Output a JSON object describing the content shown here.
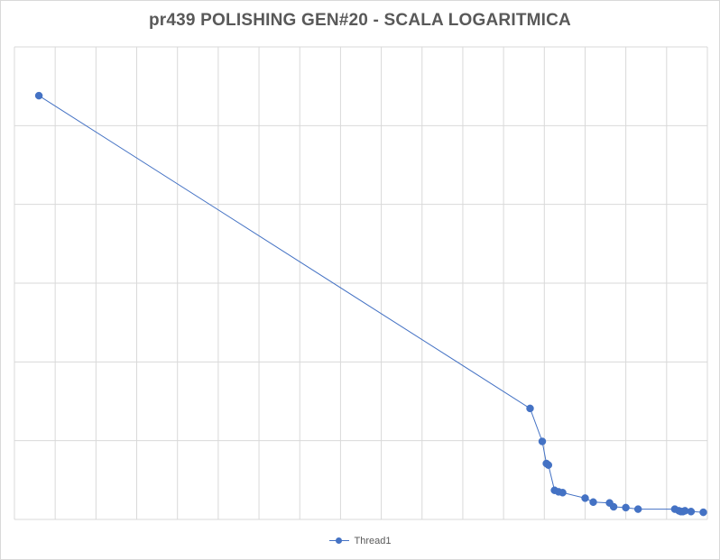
{
  "chart_data": {
    "type": "line",
    "title": "pr439 POLISHING GEN#20 - SCALA LOGARITMICA",
    "xlabel": "",
    "ylabel": "",
    "grid": true,
    "legend_position": "bottom",
    "series": [
      {
        "name": "Thread1",
        "color": "#4472c4",
        "points": [
          [
            0.6,
            5.38
          ],
          [
            12.65,
            1.41
          ],
          [
            12.95,
            0.99
          ],
          [
            13.05,
            0.71
          ],
          [
            13.1,
            0.69
          ],
          [
            13.25,
            0.37
          ],
          [
            13.35,
            0.35
          ],
          [
            13.45,
            0.34
          ],
          [
            14.0,
            0.27
          ],
          [
            14.2,
            0.22
          ],
          [
            14.6,
            0.21
          ],
          [
            14.7,
            0.16
          ],
          [
            15.0,
            0.15
          ],
          [
            15.3,
            0.13
          ],
          [
            16.2,
            0.13
          ],
          [
            16.3,
            0.11
          ],
          [
            16.35,
            0.1
          ],
          [
            16.4,
            0.1
          ],
          [
            16.45,
            0.11
          ],
          [
            16.6,
            0.1
          ],
          [
            16.9,
            0.09
          ]
        ]
      }
    ],
    "xlim": [
      0,
      17
    ],
    "ylim": [
      0,
      6
    ],
    "x_gridlines": 17,
    "y_gridlines": 6
  }
}
